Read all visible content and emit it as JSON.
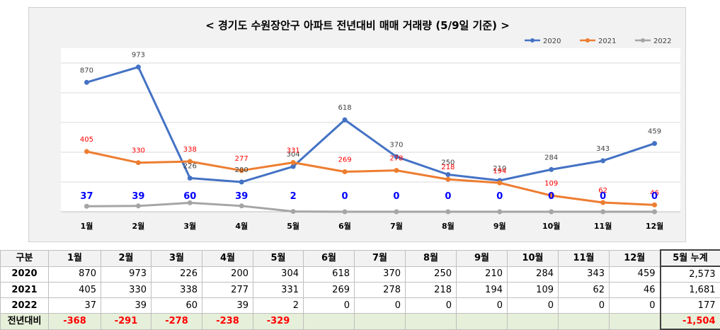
{
  "chart_data": {
    "type": "line",
    "title": "< 경기도 수원장안구  아파트 전년대비 매매 거래량 (5/9일 기준) >",
    "categories": [
      "1월",
      "2월",
      "3월",
      "4월",
      "5월",
      "6월",
      "7월",
      "8월",
      "9월",
      "10월",
      "11월",
      "12월"
    ],
    "series": [
      {
        "name": "2020",
        "color": "#4472c4",
        "values": [
          870,
          973,
          226,
          200,
          304,
          618,
          370,
          250,
          210,
          284,
          343,
          459
        ],
        "labels": [
          "870",
          "973",
          "226",
          "200",
          "304",
          "618",
          "370",
          "250",
          "210",
          "284",
          "343",
          "459"
        ]
      },
      {
        "name": "2021",
        "color": "#ed7d31",
        "values": [
          405,
          330,
          338,
          277,
          331,
          269,
          278,
          218,
          194,
          109,
          62,
          46
        ],
        "labels": [
          "405",
          "330",
          "338",
          "277",
          "331",
          "269",
          "278",
          "218",
          "194",
          "109",
          "62",
          "46"
        ]
      },
      {
        "name": "2022",
        "color": "#a5a5a5",
        "values": [
          37,
          39,
          60,
          39,
          2,
          0,
          0,
          0,
          0,
          0,
          0,
          0
        ],
        "labels": [
          "37",
          "39",
          "60",
          "39",
          "2",
          "0",
          "0",
          "0",
          "0",
          "0",
          "0",
          "0"
        ]
      }
    ],
    "ylim": [
      0,
      1100
    ],
    "grid": true,
    "legend_position": "top-right",
    "label_colors": {
      "2020": "#404040",
      "2021": "#ff0000",
      "2022": "#0000ff"
    }
  },
  "table": {
    "header": [
      "구분",
      "1월",
      "2월",
      "3월",
      "4월",
      "5월",
      "6월",
      "7월",
      "8월",
      "9월",
      "10월",
      "11월",
      "12월",
      "5월 누계"
    ],
    "rows": [
      {
        "label": "2020",
        "cells": [
          "870",
          "973",
          "226",
          "200",
          "304",
          "618",
          "370",
          "250",
          "210",
          "284",
          "343",
          "459"
        ],
        "total": "2,573"
      },
      {
        "label": "2021",
        "cells": [
          "405",
          "330",
          "338",
          "277",
          "331",
          "269",
          "278",
          "218",
          "194",
          "109",
          "62",
          "46"
        ],
        "total": "1,681"
      },
      {
        "label": "2022",
        "cells": [
          "37",
          "39",
          "60",
          "39",
          "2",
          "0",
          "0",
          "0",
          "0",
          "0",
          "0",
          "0"
        ],
        "total": "177"
      }
    ],
    "diff": {
      "label": "전년대비",
      "cells": [
        "-368",
        "-291",
        "-278",
        "-238",
        "-329",
        "",
        "",
        "",
        "",
        "",
        "",
        ""
      ],
      "total": "-1,504"
    }
  }
}
